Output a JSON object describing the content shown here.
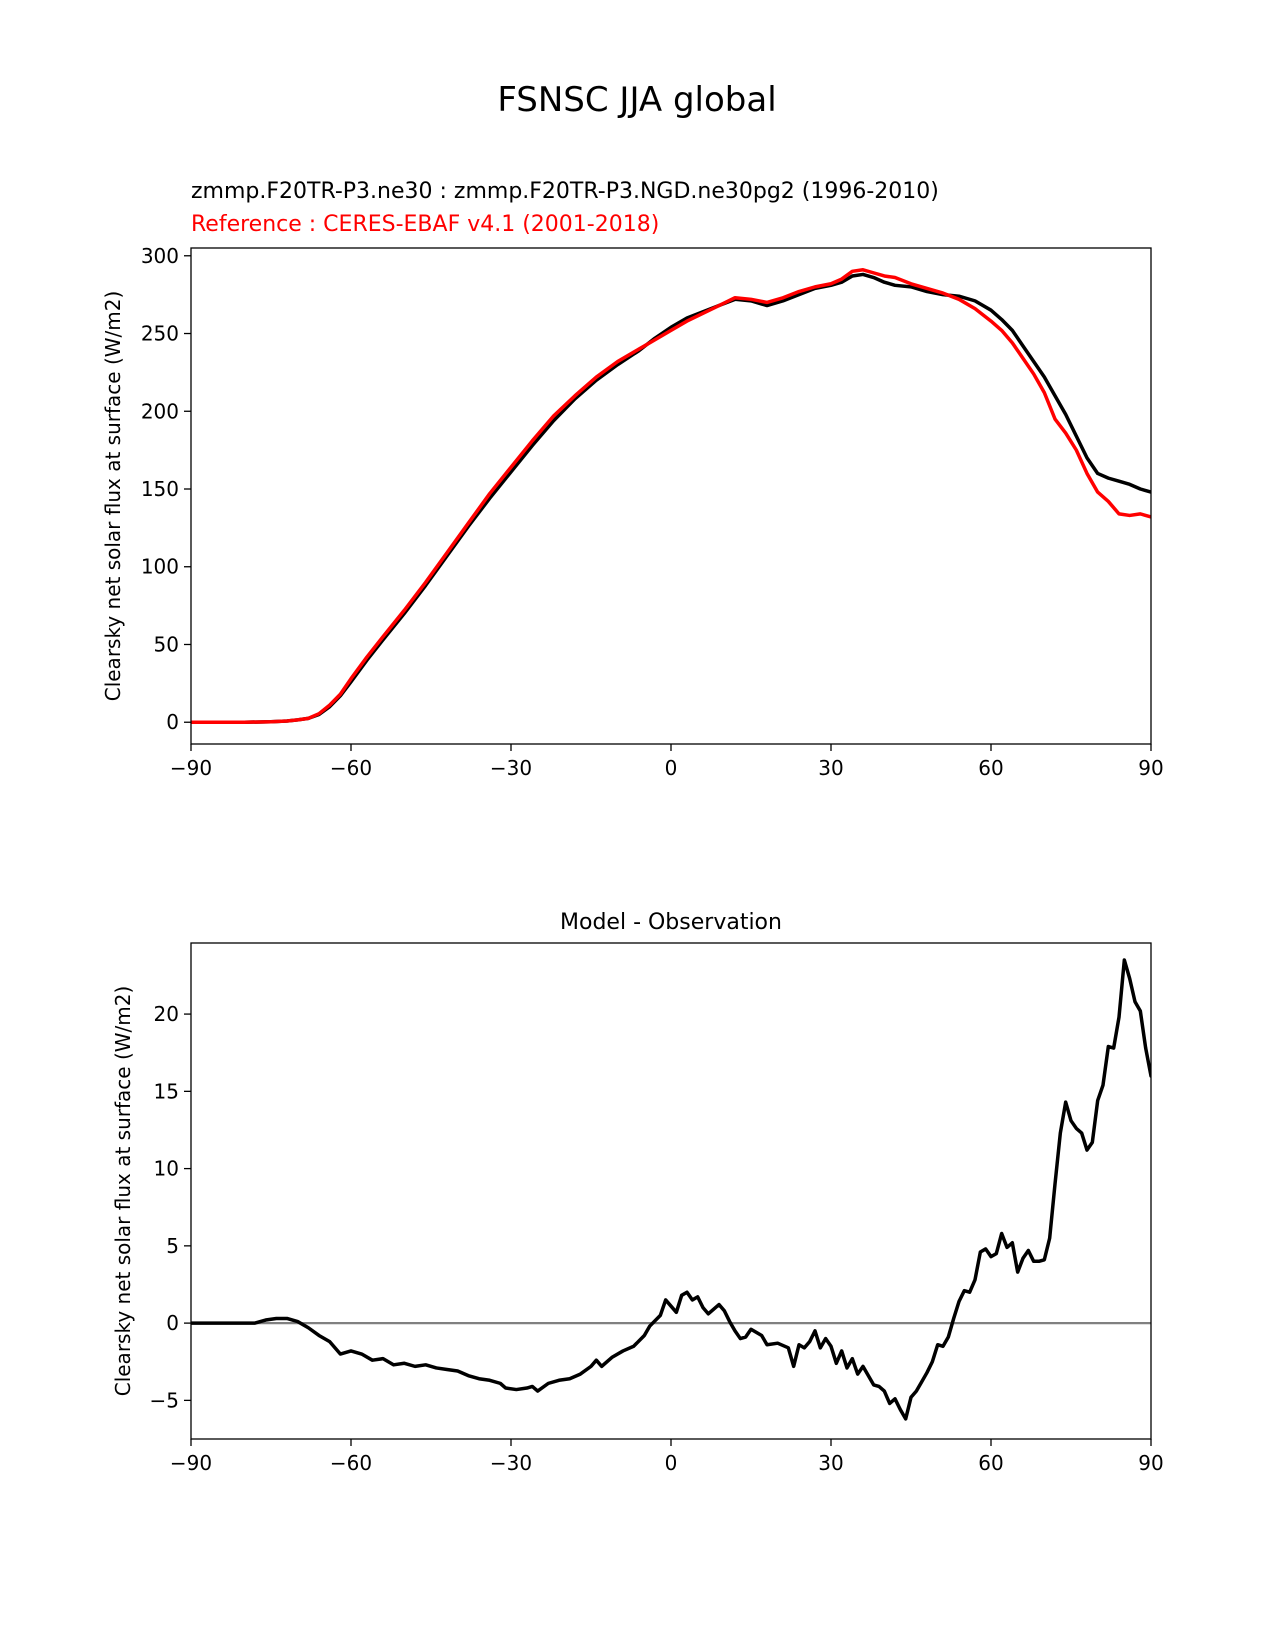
{
  "figure": {
    "title": "FSNSC JJA global",
    "subtitle_test": "zmmp.F20TR-P3.ne30 : zmmp.F20TR-P3.NGD.ne30pg2 (1996-2010)",
    "subtitle_ref": "Reference : CERES-EBAF v4.1 (2001-2018)"
  },
  "colors": {
    "test": "#000000",
    "reference": "#ff0000",
    "zero_line": "#808080",
    "axes": "#000000",
    "background": "#ffffff"
  },
  "chart_data": [
    {
      "type": "line",
      "title": "",
      "xlabel": "",
      "ylabel": "Clearsky net solar flux at surface (W/m2)",
      "xlim": [
        -90,
        90
      ],
      "ylim": [
        -14,
        305
      ],
      "xticks": [
        -90,
        -60,
        -30,
        0,
        30,
        60,
        90
      ],
      "xtick_labels": [
        "−90",
        "−60",
        "−30",
        "0",
        "30",
        "60",
        "90"
      ],
      "yticks": [
        0,
        50,
        100,
        150,
        200,
        250,
        300
      ],
      "ytick_labels": [
        "0",
        "50",
        "100",
        "150",
        "200",
        "250",
        "300"
      ],
      "grid": false,
      "legend": "none",
      "series": [
        {
          "color": "#000000",
          "points": [
            [
              -90,
              0
            ],
            [
              -80,
              0
            ],
            [
              -75,
              0.3
            ],
            [
              -72,
              0.8
            ],
            [
              -70,
              1.5
            ],
            [
              -68,
              2.5
            ],
            [
              -66,
              5
            ],
            [
              -64,
              10
            ],
            [
              -62,
              17
            ],
            [
              -60,
              26
            ],
            [
              -57,
              40
            ],
            [
              -54,
              53
            ],
            [
              -50,
              70
            ],
            [
              -46,
              88
            ],
            [
              -42,
              107
            ],
            [
              -38,
              126
            ],
            [
              -34,
              144
            ],
            [
              -30,
              161
            ],
            [
              -26,
              178
            ],
            [
              -22,
              194
            ],
            [
              -18,
              208
            ],
            [
              -14,
              220
            ],
            [
              -10,
              230
            ],
            [
              -6,
              239
            ],
            [
              -3,
              247
            ],
            [
              0,
              254
            ],
            [
              3,
              260
            ],
            [
              6,
              264
            ],
            [
              9,
              268
            ],
            [
              12,
              272
            ],
            [
              15,
              271
            ],
            [
              18,
              268
            ],
            [
              21,
              271
            ],
            [
              24,
              275
            ],
            [
              27,
              279
            ],
            [
              30,
              281
            ],
            [
              32,
              283
            ],
            [
              34,
              287
            ],
            [
              36,
              288
            ],
            [
              38,
              286
            ],
            [
              40,
              283
            ],
            [
              42,
              281
            ],
            [
              45,
              280
            ],
            [
              48,
              277
            ],
            [
              51,
              275
            ],
            [
              54,
              274
            ],
            [
              57,
              271
            ],
            [
              60,
              265
            ],
            [
              62,
              259
            ],
            [
              64,
              252
            ],
            [
              66,
              242
            ],
            [
              68,
              232
            ],
            [
              70,
              222
            ],
            [
              72,
              210
            ],
            [
              74,
              198
            ],
            [
              76,
              184
            ],
            [
              78,
              170
            ],
            [
              80,
              160
            ],
            [
              82,
              157
            ],
            [
              84,
              155
            ],
            [
              86,
              153
            ],
            [
              88,
              150
            ],
            [
              90,
              148
            ]
          ]
        },
        {
          "color": "#ff0000",
          "points": [
            [
              -90,
              0
            ],
            [
              -80,
              0
            ],
            [
              -75,
              0.3
            ],
            [
              -72,
              0.8
            ],
            [
              -70,
              1.5
            ],
            [
              -68,
              2.5
            ],
            [
              -66,
              5.5
            ],
            [
              -64,
              11
            ],
            [
              -62,
              18
            ],
            [
              -60,
              28
            ],
            [
              -57,
              42
            ],
            [
              -54,
              55
            ],
            [
              -50,
              72
            ],
            [
              -46,
              90
            ],
            [
              -42,
              109
            ],
            [
              -38,
              128
            ],
            [
              -34,
              147
            ],
            [
              -30,
              164
            ],
            [
              -26,
              181
            ],
            [
              -22,
              197
            ],
            [
              -18,
              210
            ],
            [
              -14,
              222
            ],
            [
              -10,
              232
            ],
            [
              -6,
              240
            ],
            [
              -3,
              246
            ],
            [
              0,
              252
            ],
            [
              3,
              258
            ],
            [
              6,
              263
            ],
            [
              9,
              268
            ],
            [
              12,
              273
            ],
            [
              15,
              272
            ],
            [
              18,
              270
            ],
            [
              21,
              273
            ],
            [
              24,
              277
            ],
            [
              27,
              280
            ],
            [
              30,
              282
            ],
            [
              32,
              285
            ],
            [
              34,
              290
            ],
            [
              36,
              291
            ],
            [
              38,
              289
            ],
            [
              40,
              287
            ],
            [
              42,
              286
            ],
            [
              45,
              282
            ],
            [
              48,
              279
            ],
            [
              51,
              276
            ],
            [
              54,
              272
            ],
            [
              57,
              266
            ],
            [
              60,
              258
            ],
            [
              62,
              252
            ],
            [
              64,
              244
            ],
            [
              66,
              234
            ],
            [
              68,
              224
            ],
            [
              70,
              212
            ],
            [
              72,
              195
            ],
            [
              74,
              186
            ],
            [
              76,
              175
            ],
            [
              78,
              160
            ],
            [
              80,
              148
            ],
            [
              82,
              142
            ],
            [
              84,
              134
            ],
            [
              86,
              133
            ],
            [
              88,
              134
            ],
            [
              90,
              132
            ]
          ]
        }
      ]
    },
    {
      "type": "line",
      "title": "Model - Observation",
      "xlabel": "",
      "ylabel": "Clearsky net solar flux at surface (W/m2)",
      "xlim": [
        -90,
        90
      ],
      "ylim": [
        -7.5,
        24.6
      ],
      "xticks": [
        -90,
        -60,
        -30,
        0,
        30,
        60,
        90
      ],
      "xtick_labels": [
        "−90",
        "−60",
        "−30",
        "0",
        "30",
        "60",
        "90"
      ],
      "yticks": [
        -5,
        0,
        5,
        10,
        15,
        20
      ],
      "ytick_labels": [
        "−5",
        "0",
        "5",
        "10",
        "15",
        "20"
      ],
      "grid": false,
      "legend": "none",
      "zero_line": 0,
      "series": [
        {
          "color": "#000000",
          "points": [
            [
              -90,
              0
            ],
            [
              -78,
              0
            ],
            [
              -76,
              0.2
            ],
            [
              -74,
              0.3
            ],
            [
              -72,
              0.3
            ],
            [
              -70,
              0.1
            ],
            [
              -68,
              -0.3
            ],
            [
              -66,
              -0.8
            ],
            [
              -64,
              -1.2
            ],
            [
              -62,
              -2.0
            ],
            [
              -60,
              -1.8
            ],
            [
              -58,
              -2.0
            ],
            [
              -56,
              -2.4
            ],
            [
              -54,
              -2.3
            ],
            [
              -52,
              -2.7
            ],
            [
              -50,
              -2.6
            ],
            [
              -48,
              -2.8
            ],
            [
              -46,
              -2.7
            ],
            [
              -44,
              -2.9
            ],
            [
              -42,
              -3.0
            ],
            [
              -40,
              -3.1
            ],
            [
              -38,
              -3.4
            ],
            [
              -36,
              -3.6
            ],
            [
              -34,
              -3.7
            ],
            [
              -32,
              -3.9
            ],
            [
              -31,
              -4.2
            ],
            [
              -29,
              -4.3
            ],
            [
              -27,
              -4.2
            ],
            [
              -26,
              -4.1
            ],
            [
              -25,
              -4.4
            ],
            [
              -23,
              -3.9
            ],
            [
              -21,
              -3.7
            ],
            [
              -19,
              -3.6
            ],
            [
              -17,
              -3.3
            ],
            [
              -15,
              -2.8
            ],
            [
              -14,
              -2.4
            ],
            [
              -13,
              -2.8
            ],
            [
              -11,
              -2.2
            ],
            [
              -9,
              -1.8
            ],
            [
              -7,
              -1.5
            ],
            [
              -5,
              -0.8
            ],
            [
              -4,
              -0.2
            ],
            [
              -2,
              0.5
            ],
            [
              -1,
              1.5
            ],
            [
              1,
              0.7
            ],
            [
              2,
              1.8
            ],
            [
              3,
              2.0
            ],
            [
              4,
              1.5
            ],
            [
              5,
              1.7
            ],
            [
              6,
              1.0
            ],
            [
              7,
              0.6
            ],
            [
              8,
              0.9
            ],
            [
              9,
              1.2
            ],
            [
              10,
              0.8
            ],
            [
              11,
              0.1
            ],
            [
              12,
              -0.5
            ],
            [
              13,
              -1.0
            ],
            [
              14,
              -0.9
            ],
            [
              15,
              -0.4
            ],
            [
              17,
              -0.8
            ],
            [
              18,
              -1.4
            ],
            [
              20,
              -1.3
            ],
            [
              22,
              -1.6
            ],
            [
              23,
              -2.8
            ],
            [
              24,
              -1.4
            ],
            [
              25,
              -1.6
            ],
            [
              26,
              -1.2
            ],
            [
              27,
              -0.5
            ],
            [
              28,
              -1.6
            ],
            [
              29,
              -1.0
            ],
            [
              30,
              -1.5
            ],
            [
              31,
              -2.6
            ],
            [
              32,
              -1.8
            ],
            [
              33,
              -2.9
            ],
            [
              34,
              -2.3
            ],
            [
              35,
              -3.3
            ],
            [
              36,
              -2.8
            ],
            [
              37,
              -3.4
            ],
            [
              38,
              -4.0
            ],
            [
              39,
              -4.1
            ],
            [
              40,
              -4.4
            ],
            [
              41,
              -5.2
            ],
            [
              42,
              -4.9
            ],
            [
              43,
              -5.6
            ],
            [
              44,
              -6.2
            ],
            [
              45,
              -4.8
            ],
            [
              46,
              -4.4
            ],
            [
              47,
              -3.8
            ],
            [
              48,
              -3.2
            ],
            [
              49,
              -2.5
            ],
            [
              50,
              -1.4
            ],
            [
              51,
              -1.5
            ],
            [
              52,
              -0.9
            ],
            [
              53,
              0.3
            ],
            [
              54,
              1.4
            ],
            [
              55,
              2.1
            ],
            [
              56,
              2.0
            ],
            [
              57,
              2.8
            ],
            [
              58,
              4.6
            ],
            [
              59,
              4.8
            ],
            [
              60,
              4.3
            ],
            [
              61,
              4.5
            ],
            [
              62,
              5.8
            ],
            [
              63,
              4.9
            ],
            [
              64,
              5.2
            ],
            [
              65,
              3.3
            ],
            [
              66,
              4.2
            ],
            [
              67,
              4.7
            ],
            [
              68,
              4.0
            ],
            [
              69,
              4.0
            ],
            [
              70,
              4.1
            ],
            [
              71,
              5.5
            ],
            [
              72,
              9.0
            ],
            [
              73,
              12.3
            ],
            [
              74,
              14.3
            ],
            [
              75,
              13.1
            ],
            [
              76,
              12.6
            ],
            [
              77,
              12.3
            ],
            [
              78,
              11.2
            ],
            [
              79,
              11.7
            ],
            [
              80,
              14.4
            ],
            [
              81,
              15.4
            ],
            [
              82,
              17.9
            ],
            [
              83,
              17.8
            ],
            [
              84,
              19.8
            ],
            [
              85,
              23.5
            ],
            [
              86,
              22.3
            ],
            [
              87,
              20.8
            ],
            [
              88,
              20.2
            ],
            [
              89,
              17.8
            ],
            [
              90,
              16.0
            ],
            [
              91,
              16.2
            ]
          ]
        }
      ]
    }
  ]
}
